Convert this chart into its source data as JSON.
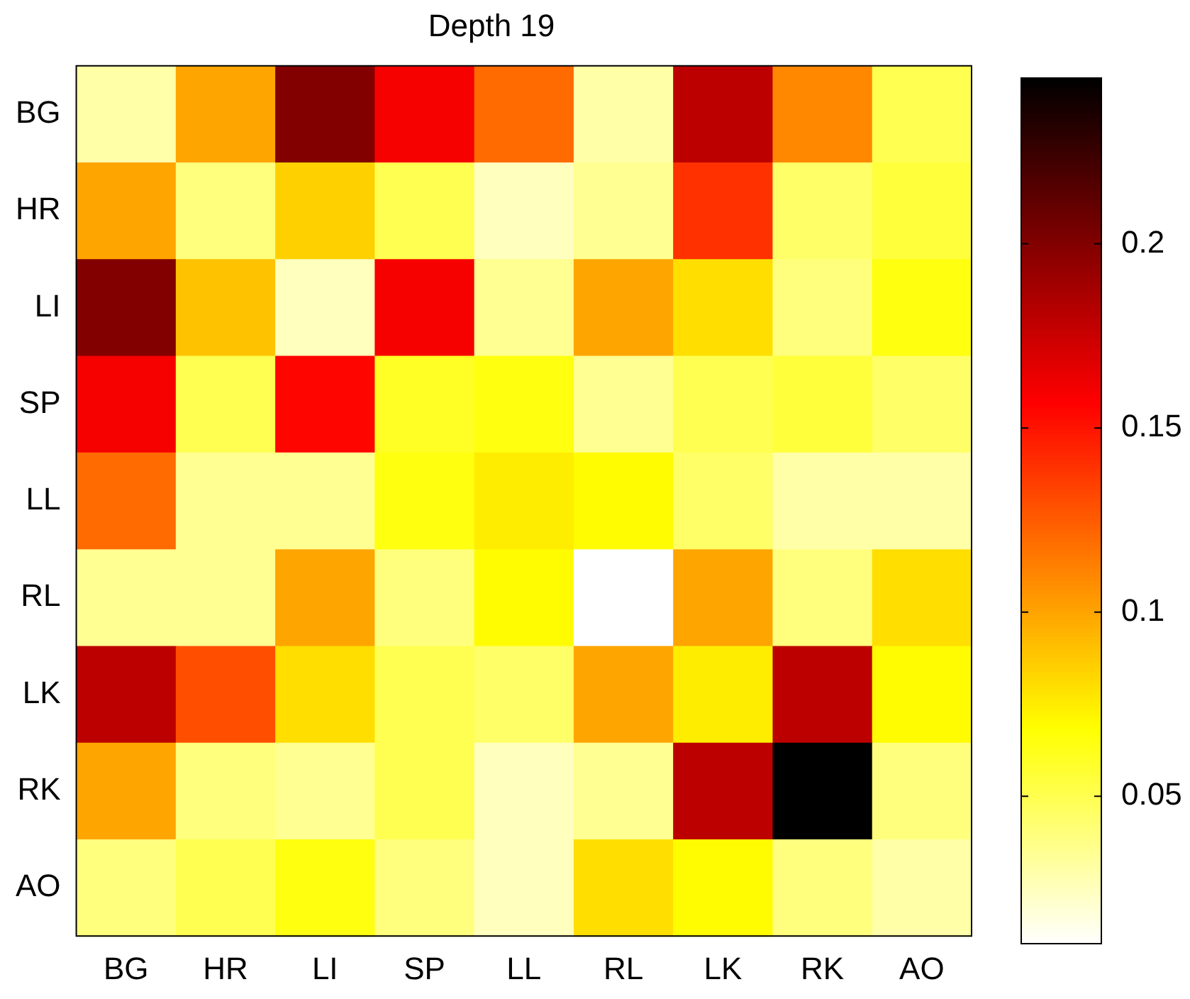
{
  "chart_data": {
    "type": "heatmap",
    "title": "Depth 19",
    "categories": [
      "BG",
      "HR",
      "LI",
      "SP",
      "LL",
      "RL",
      "LK",
      "RK",
      "AO"
    ],
    "y_categories": [
      "BG",
      "HR",
      "LI",
      "SP",
      "LL",
      "RL",
      "LK",
      "RK",
      "AO"
    ],
    "cells": [
      [
        0.03,
        0.1,
        0.2,
        0.16,
        0.12,
        0.03,
        0.18,
        0.11,
        0.05
      ],
      [
        0.1,
        0.04,
        0.085,
        0.05,
        0.025,
        0.035,
        0.14,
        0.045,
        0.055
      ],
      [
        0.2,
        0.09,
        0.025,
        0.16,
        0.035,
        0.1,
        0.08,
        0.04,
        0.065
      ],
      [
        0.16,
        0.05,
        0.155,
        0.06,
        0.065,
        0.035,
        0.05,
        0.055,
        0.045
      ],
      [
        0.12,
        0.035,
        0.035,
        0.065,
        0.075,
        0.07,
        0.045,
        0.03,
        0.03
      ],
      [
        0.035,
        0.035,
        0.1,
        0.04,
        0.07,
        0.01,
        0.1,
        0.04,
        0.08
      ],
      [
        0.18,
        0.13,
        0.08,
        0.05,
        0.045,
        0.1,
        0.075,
        0.18,
        0.07
      ],
      [
        0.1,
        0.04,
        0.035,
        0.05,
        0.025,
        0.035,
        0.18,
        0.245,
        0.04
      ],
      [
        0.04,
        0.05,
        0.065,
        0.04,
        0.025,
        0.08,
        0.07,
        0.04,
        0.03
      ]
    ],
    "clim": [
      0.01,
      0.245
    ],
    "cticks": [
      0.05,
      0.1,
      0.15,
      0.2
    ]
  }
}
